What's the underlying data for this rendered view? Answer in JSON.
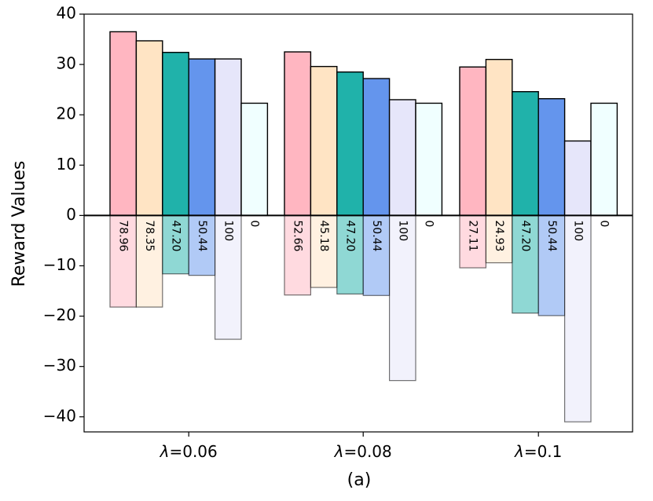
{
  "chart_data": {
    "type": "bar",
    "title": "",
    "caption": "(a)",
    "ylabel": "Reward Values",
    "xlabel": "",
    "ylim": [
      -43,
      40
    ],
    "yticks": [
      40,
      30,
      20,
      10,
      0,
      -10,
      -20,
      -30,
      -40
    ],
    "ytick_labels": [
      "40",
      "30",
      "20",
      "10",
      "0",
      "−10",
      "−20",
      "−30",
      "−40"
    ],
    "categories": [
      "λ=0.06",
      "λ=0.08",
      "λ=0.1"
    ],
    "category_parts": [
      {
        "symbol": "λ",
        "value": "=0.06"
      },
      {
        "symbol": "λ",
        "value": "=0.08"
      },
      {
        "symbol": "λ",
        "value": "=0.1"
      }
    ],
    "series": [
      {
        "color": "#FFB6C1",
        "positive": [
          36.5,
          32.5,
          29.5
        ],
        "negative": [
          -18.2,
          -15.8,
          -10.4
        ],
        "labels": [
          "78.96",
          "52.66",
          "27.11"
        ]
      },
      {
        "color": "#FFE4C4",
        "positive": [
          34.7,
          29.6,
          31.0
        ],
        "negative": [
          -18.2,
          -14.3,
          -9.4
        ],
        "labels": [
          "78.35",
          "45.18",
          "24.93"
        ]
      },
      {
        "color": "#20B2AA",
        "positive": [
          32.4,
          28.5,
          24.6
        ],
        "negative": [
          -11.6,
          -15.6,
          -19.4
        ],
        "labels": [
          "47.20",
          "47.20",
          "47.20"
        ]
      },
      {
        "color": "#6495ED",
        "positive": [
          31.1,
          27.2,
          23.2
        ],
        "negative": [
          -11.9,
          -15.9,
          -19.9
        ],
        "labels": [
          "50.44",
          "50.44",
          "50.44"
        ]
      },
      {
        "color": "#E6E6FA",
        "positive": [
          31.1,
          23.0,
          14.8
        ],
        "negative": [
          -24.6,
          -32.8,
          -41.0
        ],
        "labels": [
          "100",
          "100",
          "100"
        ]
      },
      {
        "color": "#F0FFFF",
        "positive": [
          22.3,
          22.3,
          22.3
        ],
        "negative": [
          0,
          0,
          0
        ],
        "labels": [
          "0",
          "0",
          "0"
        ]
      }
    ]
  }
}
